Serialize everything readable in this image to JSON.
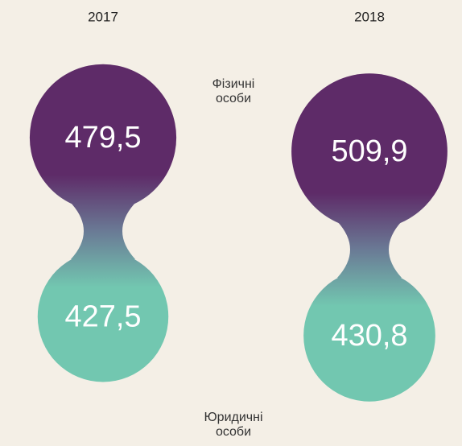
{
  "chart_data": {
    "type": "bubble",
    "categories": [
      "2017",
      "2018"
    ],
    "series": [
      {
        "name": "Фізичні особи",
        "color": "#5e2b68",
        "values": [
          479.5,
          509.9
        ],
        "value_labels": [
          "479,5",
          "509,9"
        ]
      },
      {
        "name": "Юридичні особи",
        "color": "#72c7b0",
        "values": [
          427.5,
          430.8
        ],
        "value_labels": [
          "427,5",
          "430,8"
        ]
      }
    ]
  }
}
